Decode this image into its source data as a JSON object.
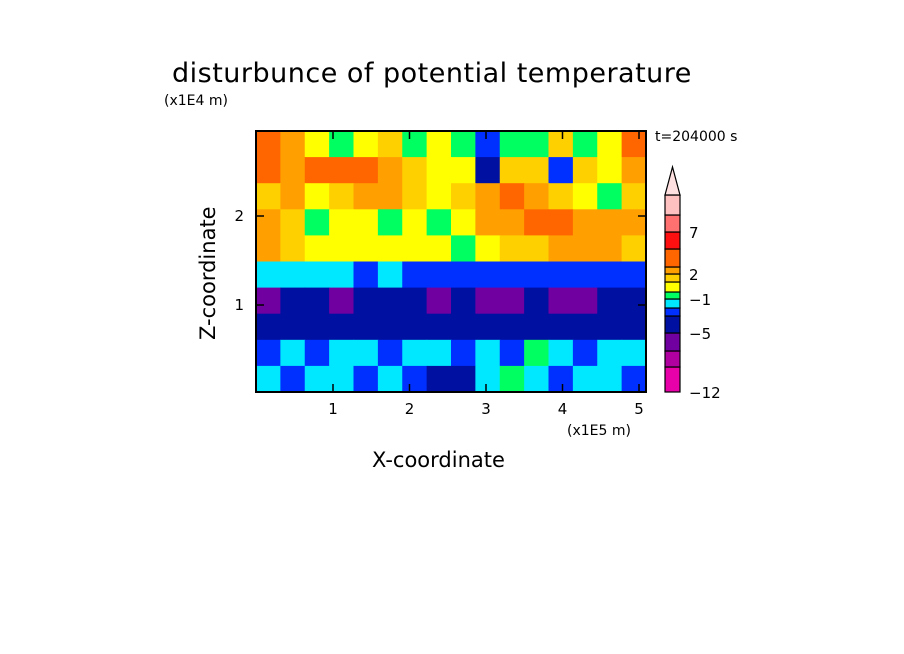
{
  "chart_data": {
    "type": "heatmap",
    "title": "disturbunce of potential temperature",
    "xlabel": "X-coordinate",
    "ylabel": "Z-coordinate",
    "x_unit": "(x1E5 m)",
    "y_unit": "(x1E4 m)",
    "annotation": "t=204000 s",
    "xlim": [
      0,
      5.1
    ],
    "ylim": [
      0,
      2.95
    ],
    "x_ticks": [
      "1",
      "2",
      "3",
      "4",
      "5"
    ],
    "y_ticks": [
      "1",
      "2"
    ],
    "colorbar": {
      "levels": [
        -12,
        -9,
        -7,
        -5,
        -3,
        -2,
        -1,
        0,
        1,
        2,
        3,
        5,
        7,
        9,
        12
      ],
      "tick_labels": [
        "-12",
        "-5",
        "-1",
        "2",
        "7"
      ],
      "colors": [
        "#e800a8",
        "#b000a0",
        "#7000a0",
        "#0010a0",
        "#0030ff",
        "#00e8ff",
        "#00ff60",
        "#ffff00",
        "#ffd000",
        "#ffa000",
        "#ff6600",
        "#ff1010",
        "#ff7070",
        "#ffc0c0"
      ],
      "extend": "max"
    },
    "grid_rows_top_to_bottom": [
      [
        3.5,
        2.5,
        0.5,
        -0.5,
        0.5,
        1.5,
        -0.5,
        0.5,
        -0.5,
        -2.5,
        -0.5,
        -0.5,
        1.5,
        -0.5,
        0.5,
        3.5
      ],
      [
        3.5,
        2.5,
        3.5,
        3.5,
        3.5,
        2.5,
        1.5,
        0.5,
        0.5,
        -4,
        1.5,
        1.5,
        -2.5,
        1.5,
        0.5,
        2.5
      ],
      [
        1.5,
        2.5,
        0.5,
        1.5,
        2.5,
        2.5,
        1.5,
        0.5,
        1.5,
        2.5,
        3.5,
        2.5,
        1.5,
        0.5,
        -0.5,
        1.5
      ],
      [
        2.5,
        1.5,
        -0.5,
        0.5,
        0.5,
        -0.5,
        0.5,
        -0.5,
        0.5,
        2.5,
        2.5,
        3.5,
        3.5,
        2.5,
        2.5,
        2.5
      ],
      [
        2.5,
        1.5,
        0.5,
        0.5,
        0.5,
        0.5,
        0.5,
        0.5,
        -0.5,
        0.5,
        1.5,
        1.5,
        2.5,
        2.5,
        2.5,
        1.5
      ],
      [
        -1.5,
        -1.5,
        -1.5,
        -1.5,
        -2.5,
        -1.5,
        -2.5,
        -2.5,
        -2.5,
        -2.5,
        -2.5,
        -2.5,
        -2.5,
        -2.5,
        -2.5,
        -2.5
      ],
      [
        -6,
        -4,
        -4,
        -6,
        -4,
        -4,
        -4,
        -6,
        -4,
        -6,
        -6,
        -4,
        -6,
        -6,
        -4,
        -4
      ],
      [
        -4,
        -4,
        -4,
        -4,
        -4,
        -4,
        -4,
        -4,
        -4,
        -4,
        -4,
        -4,
        -4,
        -4,
        -4,
        -4
      ],
      [
        -2.5,
        -1.5,
        -2.5,
        -1.5,
        -1.5,
        -2.5,
        -1.5,
        -1.5,
        -2.5,
        -1.5,
        -2.5,
        -0.5,
        -1.5,
        -2.5,
        -1.5,
        -1.5
      ],
      [
        -1.5,
        -2.5,
        -1.5,
        -1.5,
        -2.5,
        -1.5,
        -2.5,
        -4,
        -4,
        -1.5,
        -0.5,
        -1.5,
        -2.5,
        -1.5,
        -1.5,
        -2.5
      ]
    ]
  }
}
